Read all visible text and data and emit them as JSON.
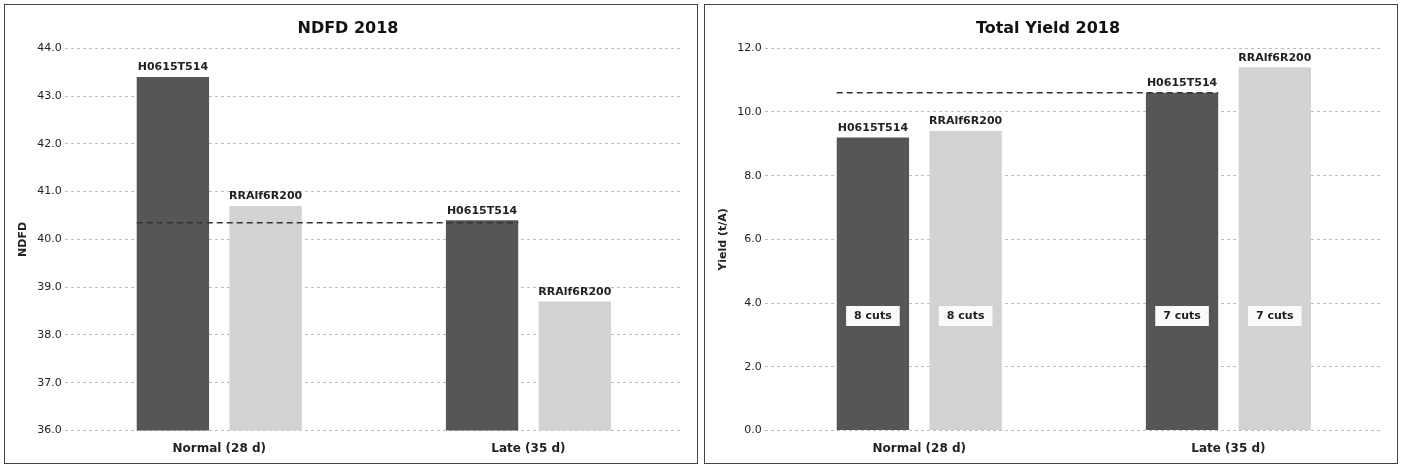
{
  "chart_data": [
    {
      "type": "bar",
      "title": "NDFD 2018",
      "ylabel": "NDFD",
      "categories": [
        "Normal (28 d)",
        "Late (35 d)"
      ],
      "series": [
        {
          "name": "H0615T514",
          "color": "#565656",
          "values": [
            43.4,
            40.4
          ]
        },
        {
          "name": "RRAlf6R200",
          "color": "#d2d2d2",
          "values": [
            40.7,
            38.7
          ]
        }
      ],
      "ylim": [
        36.0,
        44.0
      ],
      "yticks": [
        {
          "value": 36,
          "label": "36.0"
        },
        {
          "value": 37,
          "label": "37.0"
        },
        {
          "value": 38,
          "label": "38.0"
        },
        {
          "value": 39,
          "label": "39.0"
        },
        {
          "value": 40,
          "label": "40.0"
        },
        {
          "value": 41,
          "label": "41.0"
        },
        {
          "value": 42,
          "label": "42.0"
        },
        {
          "value": 43,
          "label": "43.0"
        },
        {
          "value": 44,
          "label": "44.0"
        }
      ],
      "ref_lines": [
        {
          "axis": "y",
          "value": 40.35,
          "line_style": "dashed",
          "color": "#333333"
        }
      ],
      "grid": "y",
      "legend": false
    },
    {
      "type": "bar",
      "title": "Total Yield 2018",
      "ylabel": "Yield (t/A)",
      "categories": [
        "Normal (28 d)",
        "Late (35 d)"
      ],
      "series": [
        {
          "name": "H0615T514",
          "color": "#565656",
          "values": [
            9.2,
            10.6
          ]
        },
        {
          "name": "RRAlf6R200",
          "color": "#d2d2d2",
          "values": [
            9.4,
            11.4
          ]
        }
      ],
      "ylim": [
        0.0,
        12.0
      ],
      "yticks": [
        {
          "value": 0,
          "label": "0.0"
        },
        {
          "value": 2,
          "label": "2.0"
        },
        {
          "value": 4,
          "label": "4.0"
        },
        {
          "value": 6,
          "label": "6.0"
        },
        {
          "value": 8,
          "label": "8.0"
        },
        {
          "value": 10,
          "label": "10.0"
        },
        {
          "value": 12,
          "label": "12.0"
        }
      ],
      "ref_lines": [
        {
          "axis": "y",
          "value": 10.6,
          "line_style": "dashed",
          "color": "#333333"
        }
      ],
      "annotations": [
        "8 cuts",
        "8 cuts",
        "7 cuts",
        "7 cuts"
      ],
      "grid": "y",
      "legend": false
    }
  ]
}
